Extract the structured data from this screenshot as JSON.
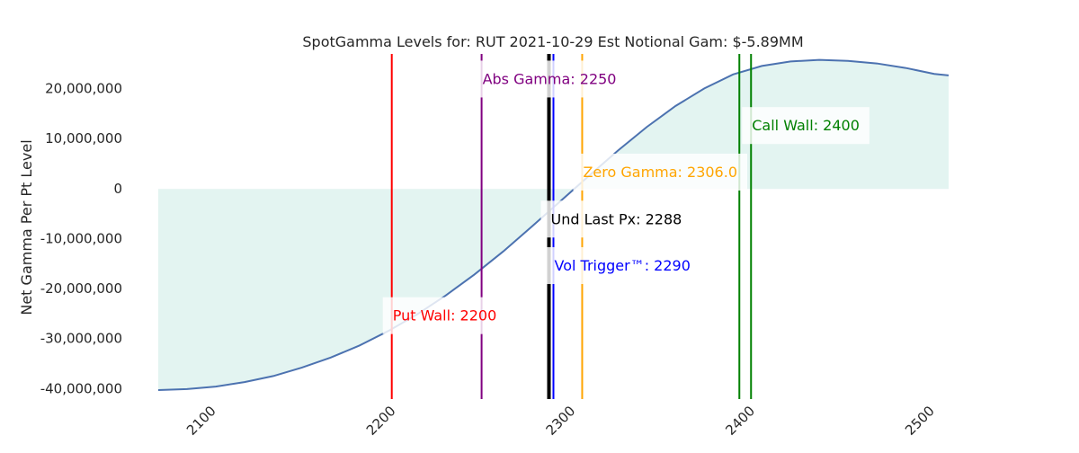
{
  "chart_data": {
    "type": "area",
    "title": "SpotGamma Levels for: RUT  2021-10-29 Est Notional Gam: $-5.89MM",
    "xlabel": "",
    "ylabel": "Net Gamma Per Pt Level",
    "xlim": [
      2070,
      2510
    ],
    "ylim": [
      -42000000,
      27000000
    ],
    "x_ticks": [
      {
        "value": 2100,
        "label": "2100"
      },
      {
        "value": 2200,
        "label": "2200"
      },
      {
        "value": 2300,
        "label": "2300"
      },
      {
        "value": 2400,
        "label": "2400"
      },
      {
        "value": 2500,
        "label": "2500"
      }
    ],
    "y_ticks": [
      {
        "value": 20000000,
        "label": "20,000,000"
      },
      {
        "value": 10000000,
        "label": "10,000,000"
      },
      {
        "value": 0,
        "label": "0"
      },
      {
        "value": -10000000,
        "label": "-10,000,000"
      },
      {
        "value": -20000000,
        "label": "-20,000,000"
      },
      {
        "value": -30000000,
        "label": "-30,000,000"
      },
      {
        "value": -40000000,
        "label": "-40,000,000"
      }
    ],
    "grid": false,
    "line_color": "#4c72b0",
    "fill_color": "#e3f4f1",
    "series": [
      {
        "x": [
          2070,
          2086,
          2102,
          2118,
          2134,
          2150,
          2166,
          2182,
          2198,
          2214,
          2230,
          2246,
          2262,
          2278,
          2294,
          2310,
          2326,
          2342,
          2358,
          2374,
          2390,
          2406,
          2422,
          2438,
          2454,
          2470,
          2486,
          2502,
          2510
        ],
        "values": [
          -40200000,
          -40000000,
          -39500000,
          -38600000,
          -37400000,
          -35700000,
          -33700000,
          -31300000,
          -28400000,
          -25100000,
          -21300000,
          -17100000,
          -12500000,
          -7500000,
          -2400000,
          2700000,
          7700000,
          12400000,
          16600000,
          20100000,
          22900000,
          24600000,
          25500000,
          25800000,
          25600000,
          25100000,
          24200000,
          23000000,
          22700000
        ]
      }
    ],
    "levels": [
      {
        "x": 2200,
        "label": "Put Wall: 2200",
        "color": "#ff0000",
        "label_y": -25500000
      },
      {
        "x": 2250,
        "label": "Abs Gamma: 2250",
        "color": "#800080",
        "label_y": 21800000
      },
      {
        "x": 2288,
        "label": "Und Last Px: 2288",
        "color": "#000000",
        "label_y": -6200000
      },
      {
        "x": 2290,
        "label": "Vol Trigger™: 2290",
        "color": "#0000ff",
        "label_y": -15500000
      },
      {
        "x": 2306.0,
        "label": "Zero Gamma: 2306.0",
        "color": "#ffa500",
        "label_y": 3200000
      },
      {
        "x": 2400,
        "label": "Call Wall: 2400",
        "color": "#008000",
        "label_y": 12500000
      }
    ],
    "extra_lines": [
      {
        "x": 2287,
        "color": "#000000"
      },
      {
        "x": 2393.5,
        "color": "#008000"
      }
    ]
  }
}
